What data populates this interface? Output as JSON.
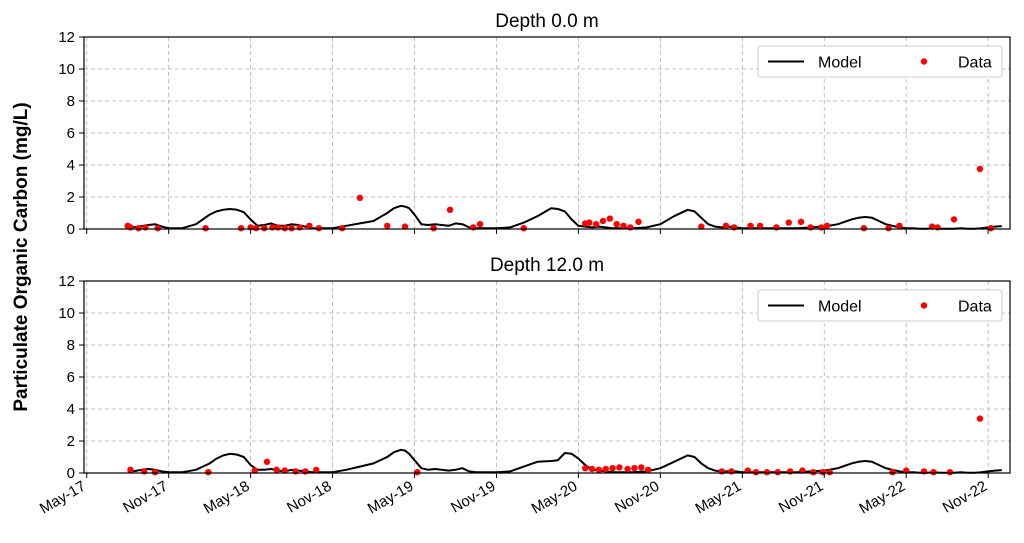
{
  "ylabel": "Particulate Organic Carbon (mg/L)",
  "legend": {
    "model": "Model",
    "data": "Data"
  },
  "colors": {
    "model": "#000000",
    "data": "#ff0000",
    "grid": "#b0b0b0"
  },
  "x_ticks": [
    "May-17",
    "Nov-17",
    "May-18",
    "Nov-18",
    "May-19",
    "Nov-19",
    "May-20",
    "Nov-20",
    "May-21",
    "Nov-21",
    "May-22",
    "Nov-22"
  ],
  "x_tick_months": [
    0,
    6,
    12,
    18,
    24,
    30,
    36,
    42,
    48,
    54,
    60,
    66
  ],
  "x_range_months": [
    -0.2,
    67.6
  ],
  "grid": true,
  "legend_position": "top-right",
  "chart_data": [
    {
      "type": "line",
      "title": "Depth 0.0 m",
      "ylim": [
        0,
        12
      ],
      "yticks": [
        0,
        2,
        4,
        6,
        8,
        10,
        12
      ],
      "series": [
        {
          "name": "Model",
          "style": "line",
          "x_months": [
            3.0,
            3.5,
            4.0,
            4.5,
            5.0,
            5.5,
            6.0,
            7.0,
            8.0,
            8.5,
            9.0,
            9.5,
            10.0,
            10.5,
            11.0,
            11.5,
            12.0,
            12.5,
            13.0,
            13.5,
            14.0,
            14.5,
            15.0,
            15.5,
            16.0,
            16.5,
            17.0,
            17.5,
            18.0,
            19.0,
            20.0,
            21.0,
            22.0,
            22.5,
            23.0,
            23.3,
            23.6,
            24.0,
            24.5,
            25.0,
            25.5,
            26.0,
            26.5,
            27.0,
            27.5,
            28.0,
            28.5,
            29.0,
            29.5,
            30.0,
            31.0,
            32.0,
            33.0,
            34.0,
            34.5,
            35.0,
            35.5,
            36.0,
            36.5,
            37.0,
            37.5,
            38.0,
            38.5,
            39.0,
            40.0,
            41.0,
            42.0,
            43.0,
            44.0,
            44.5,
            45.0,
            45.5,
            46.0,
            46.5,
            47.0,
            47.5,
            48.0,
            49.0,
            50.0,
            51.0,
            52.0,
            53.0,
            54.0,
            55.0,
            56.0,
            56.5,
            57.0,
            57.5,
            58.0,
            58.5,
            59.0,
            59.5,
            60.0,
            60.5,
            61.0,
            61.5,
            62.0,
            62.5,
            63.0,
            63.5,
            64.0,
            64.5,
            65.0,
            65.5,
            66.0,
            66.5,
            67.0
          ],
          "values": [
            0.1,
            0.12,
            0.18,
            0.25,
            0.3,
            0.15,
            0.05,
            0.05,
            0.3,
            0.6,
            0.9,
            1.1,
            1.2,
            1.25,
            1.2,
            1.05,
            0.6,
            0.2,
            0.25,
            0.35,
            0.2,
            0.2,
            0.3,
            0.25,
            0.15,
            0.05,
            0.05,
            0.05,
            0.05,
            0.2,
            0.35,
            0.5,
            1.0,
            1.3,
            1.45,
            1.4,
            1.3,
            0.9,
            0.3,
            0.25,
            0.3,
            0.25,
            0.2,
            0.35,
            0.3,
            0.1,
            0.05,
            0.05,
            0.05,
            0.05,
            0.1,
            0.4,
            0.8,
            1.3,
            1.25,
            1.1,
            0.6,
            0.2,
            0.15,
            0.1,
            0.15,
            0.1,
            0.05,
            0.05,
            0.05,
            0.1,
            0.3,
            0.8,
            1.2,
            1.1,
            0.7,
            0.3,
            0.15,
            0.1,
            0.15,
            0.1,
            0.05,
            0.05,
            0.05,
            0.05,
            0.05,
            0.1,
            0.15,
            0.3,
            0.6,
            0.7,
            0.75,
            0.7,
            0.5,
            0.3,
            0.2,
            0.1,
            0.05,
            0.05,
            0.02,
            0.02,
            0.05,
            0.02,
            0.02,
            0.02,
            0.05,
            0.02,
            0.02,
            0.05,
            0.1,
            0.15,
            0.18
          ]
        },
        {
          "name": "Data",
          "style": "scatter",
          "x_months": [
            3.0,
            3.2,
            3.8,
            4.3,
            5.2,
            8.7,
            11.3,
            12.0,
            12.4,
            13.0,
            13.6,
            14.0,
            14.5,
            15.0,
            15.6,
            16.3,
            17.0,
            18.7,
            20.0,
            22.0,
            23.3,
            25.4,
            26.6,
            28.3,
            28.8,
            32.0,
            36.5,
            36.8,
            37.3,
            37.8,
            38.3,
            38.8,
            39.3,
            39.8,
            40.4,
            45.0,
            46.8,
            47.4,
            48.6,
            49.3,
            50.5,
            51.4,
            52.3,
            53.0,
            53.8,
            54.2,
            56.9,
            58.7,
            59.5,
            61.9,
            62.3,
            63.5,
            65.4,
            66.2
          ],
          "values": [
            0.2,
            0.1,
            0.05,
            0.1,
            0.05,
            0.05,
            0.05,
            0.1,
            0.05,
            0.05,
            0.1,
            0.1,
            0.05,
            0.05,
            0.1,
            0.2,
            0.05,
            0.05,
            1.95,
            0.2,
            0.15,
            0.05,
            1.2,
            0.1,
            0.3,
            0.05,
            0.35,
            0.4,
            0.3,
            0.5,
            0.65,
            0.3,
            0.2,
            0.1,
            0.45,
            0.15,
            0.2,
            0.1,
            0.2,
            0.2,
            0.1,
            0.4,
            0.45,
            0.1,
            0.1,
            0.2,
            0.05,
            0.05,
            0.2,
            0.15,
            0.1,
            0.6,
            3.75,
            0.05
          ]
        }
      ]
    },
    {
      "type": "line",
      "title": "Depth 12.0 m",
      "ylim": [
        0,
        12
      ],
      "yticks": [
        0,
        2,
        4,
        6,
        8,
        10,
        12
      ],
      "series": [
        {
          "name": "Model",
          "style": "line",
          "x_months": [
            3.0,
            3.5,
            4.0,
            4.5,
            5.0,
            5.5,
            6.0,
            7.0,
            8.0,
            8.5,
            9.0,
            9.5,
            10.0,
            10.5,
            11.0,
            11.5,
            12.0,
            12.5,
            13.0,
            13.5,
            14.0,
            14.5,
            15.0,
            15.5,
            16.0,
            16.5,
            17.0,
            17.5,
            18.0,
            19.0,
            20.0,
            21.0,
            22.0,
            22.5,
            23.0,
            23.3,
            23.6,
            24.0,
            24.5,
            25.0,
            25.5,
            26.0,
            26.5,
            27.0,
            27.5,
            28.0,
            28.5,
            29.0,
            29.5,
            30.0,
            31.0,
            32.0,
            33.0,
            34.0,
            34.5,
            35.0,
            35.5,
            36.0,
            36.5,
            37.0,
            37.5,
            38.0,
            38.5,
            39.0,
            40.0,
            41.0,
            42.0,
            43.0,
            44.0,
            44.5,
            45.0,
            45.5,
            46.0,
            46.5,
            47.0,
            47.5,
            48.0,
            49.0,
            50.0,
            51.0,
            52.0,
            53.0,
            54.0,
            55.0,
            56.0,
            56.5,
            57.0,
            57.5,
            58.0,
            58.5,
            59.0,
            59.5,
            60.0,
            60.5,
            61.0,
            61.5,
            62.0,
            62.5,
            63.0,
            63.5,
            64.0,
            64.5,
            65.0,
            65.5,
            66.0,
            66.5,
            67.0
          ],
          "values": [
            0.1,
            0.12,
            0.2,
            0.25,
            0.2,
            0.1,
            0.05,
            0.05,
            0.2,
            0.4,
            0.6,
            0.9,
            1.1,
            1.2,
            1.15,
            1.0,
            0.5,
            0.2,
            0.2,
            0.25,
            0.15,
            0.1,
            0.2,
            0.15,
            0.1,
            0.05,
            0.05,
            0.05,
            0.05,
            0.2,
            0.4,
            0.6,
            1.0,
            1.3,
            1.45,
            1.4,
            1.2,
            0.8,
            0.3,
            0.2,
            0.25,
            0.2,
            0.15,
            0.2,
            0.3,
            0.1,
            0.05,
            0.05,
            0.05,
            0.05,
            0.1,
            0.4,
            0.7,
            0.75,
            0.8,
            1.25,
            1.2,
            0.9,
            0.5,
            0.2,
            0.15,
            0.1,
            0.05,
            0.05,
            0.05,
            0.1,
            0.3,
            0.7,
            1.1,
            1.0,
            0.6,
            0.3,
            0.15,
            0.1,
            0.1,
            0.1,
            0.05,
            0.05,
            0.05,
            0.05,
            0.05,
            0.1,
            0.15,
            0.3,
            0.6,
            0.7,
            0.75,
            0.7,
            0.5,
            0.3,
            0.2,
            0.1,
            0.05,
            0.05,
            0.02,
            0.02,
            0.05,
            0.02,
            0.02,
            0.02,
            0.05,
            0.02,
            0.02,
            0.05,
            0.1,
            0.15,
            0.18
          ]
        },
        {
          "name": "Data",
          "style": "scatter",
          "x_months": [
            3.2,
            4.2,
            5.0,
            8.9,
            12.3,
            13.2,
            13.9,
            14.5,
            15.3,
            16.0,
            16.8,
            24.2,
            36.5,
            37.0,
            37.5,
            38.0,
            38.5,
            39.0,
            39.6,
            40.1,
            40.6,
            41.1,
            46.5,
            47.2,
            48.4,
            49.0,
            49.8,
            50.6,
            51.5,
            52.4,
            53.2,
            53.9,
            54.4,
            59.0,
            60.0,
            61.3,
            62.0,
            63.2,
            65.4
          ],
          "values": [
            0.2,
            0.1,
            0.05,
            0.05,
            0.15,
            0.7,
            0.2,
            0.15,
            0.1,
            0.1,
            0.2,
            0.05,
            0.3,
            0.25,
            0.2,
            0.25,
            0.3,
            0.35,
            0.25,
            0.3,
            0.35,
            0.2,
            0.1,
            0.1,
            0.15,
            0.05,
            0.05,
            0.05,
            0.1,
            0.15,
            0.05,
            0.05,
            0.05,
            0.05,
            0.15,
            0.1,
            0.05,
            0.05,
            3.4
          ]
        }
      ]
    }
  ]
}
